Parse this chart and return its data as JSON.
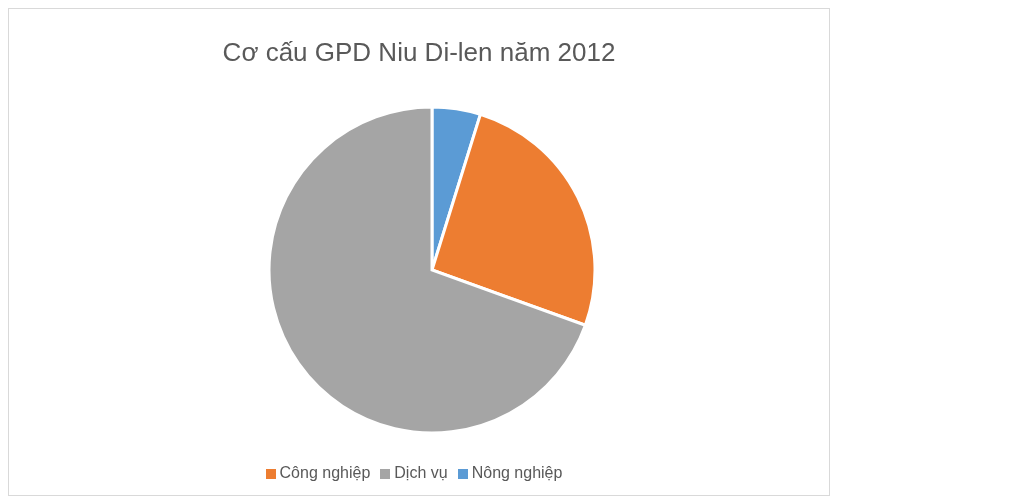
{
  "chart_data": {
    "type": "pie",
    "title": "Cơ cấu GPD Niu Di-len năm 2012",
    "categories": [
      "Nông nghiệp",
      "Công nghiệp",
      "Dịch vụ"
    ],
    "values": [
      4.8,
      25.7,
      69.5
    ],
    "colors": [
      "#5b9bd5",
      "#ed7d31",
      "#a5a5a5"
    ],
    "legend": "bottom"
  }
}
